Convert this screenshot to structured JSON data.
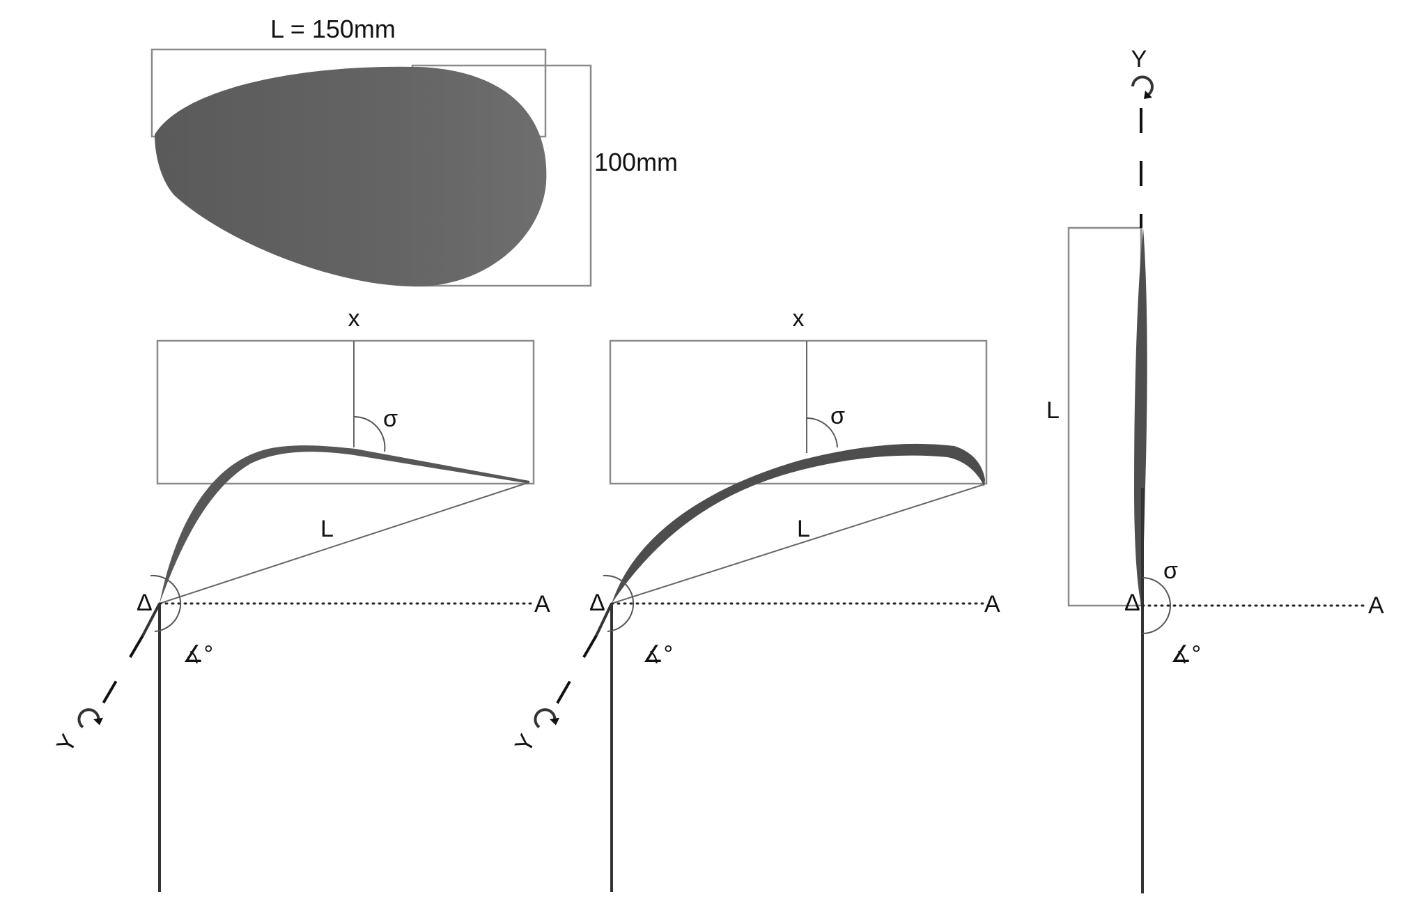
{
  "colors": {
    "blade": "#5f5f5f",
    "frame": "#8a8a8a",
    "ink": "#111111"
  },
  "blade_view": {
    "length_label": "L = 150mm",
    "width_label": "100mm"
  },
  "panel_left": {
    "x_label": "x",
    "sigma_label": "σ",
    "l_label": "L",
    "delta_label": "Δ",
    "a_label": "A",
    "angle_label": "∡°",
    "y_label": "Y"
  },
  "panel_middle": {
    "x_label": "x",
    "sigma_label": "σ",
    "l_label": "L",
    "delta_label": "Δ",
    "a_label": "A",
    "angle_label": "∡°",
    "y_label": "Y"
  },
  "panel_right": {
    "y_label": "Y",
    "l_label": "L",
    "sigma_label": "σ",
    "delta_label": "Δ",
    "a_label": "A",
    "angle_label": "∡°"
  }
}
